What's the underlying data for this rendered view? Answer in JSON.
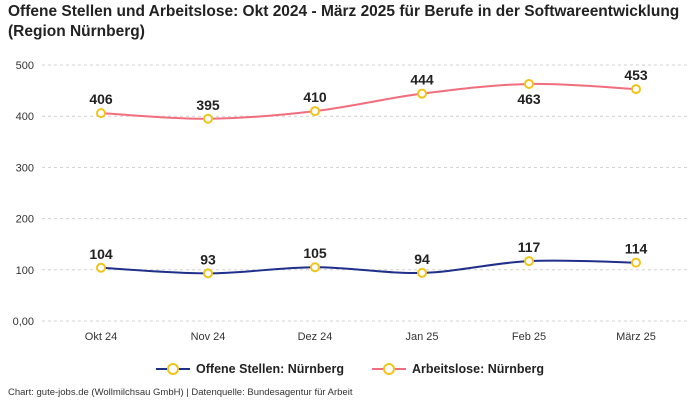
{
  "chart_data": {
    "type": "line",
    "title": "Offene Stellen und Arbeitslose: Okt 2024 - März 2025 für Berufe in der Softwareentwicklung (Region Nürnberg)",
    "categories": [
      "Okt 24",
      "Nov 24",
      "Dez 24",
      "Jan 25",
      "Feb 25",
      "März 25"
    ],
    "y_ticks": [
      0,
      100,
      200,
      300,
      400,
      500
    ],
    "y_tick_labels": [
      "0,00",
      "100",
      "200",
      "300",
      "400",
      "500"
    ],
    "ylim": [
      0,
      500
    ],
    "grid": true,
    "legend_position": "bottom",
    "series": [
      {
        "name": "Offene Stellen: Nürnberg",
        "values": [
          104,
          93,
          105,
          94,
          117,
          114
        ],
        "labels": [
          "104",
          "93",
          "105",
          "94",
          "117",
          "114"
        ],
        "label_side": [
          "above",
          "above",
          "above",
          "above",
          "above",
          "above"
        ],
        "color": "#1f2f8a"
      },
      {
        "name": "Arbeitslose: Nürnberg",
        "values": [
          406,
          395,
          410,
          444,
          463,
          453
        ],
        "labels": [
          "406",
          "395",
          "410",
          "444",
          "463",
          "453"
        ],
        "label_side": [
          "above",
          "above",
          "above",
          "above",
          "below",
          "above"
        ],
        "color": "#f26d7d"
      }
    ],
    "marker_color": "#f0c419"
  },
  "footer": {
    "source": "Chart: gute-jobs.de (Wollmilchsau GmbH) | Datenquelle: Bundesagentur für Arbeit"
  }
}
